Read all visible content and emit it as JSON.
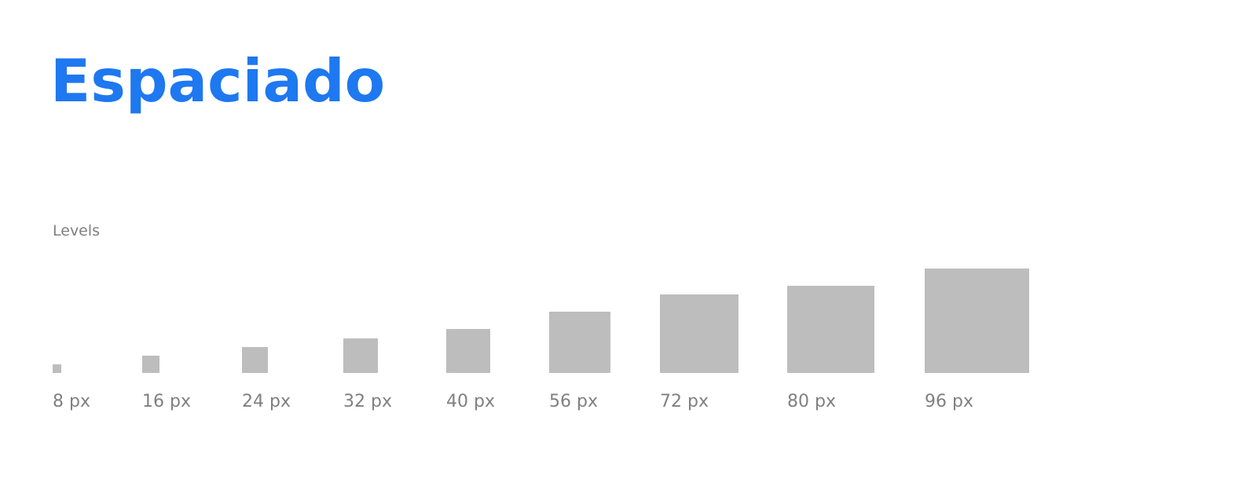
{
  "title": "Espaciado",
  "section_label": "Levels",
  "colors": {
    "title": "#1e78f0",
    "box": "#bdbdbd",
    "label": "#808080",
    "background": "#ffffff"
  },
  "levels": [
    {
      "label": "8 px"
    },
    {
      "label": "16 px"
    },
    {
      "label": "24 px"
    },
    {
      "label": "32 px"
    },
    {
      "label": "40 px"
    },
    {
      "label": "56 px"
    },
    {
      "label": "72 px"
    },
    {
      "label": "80 px"
    },
    {
      "label": "96 px"
    }
  ]
}
